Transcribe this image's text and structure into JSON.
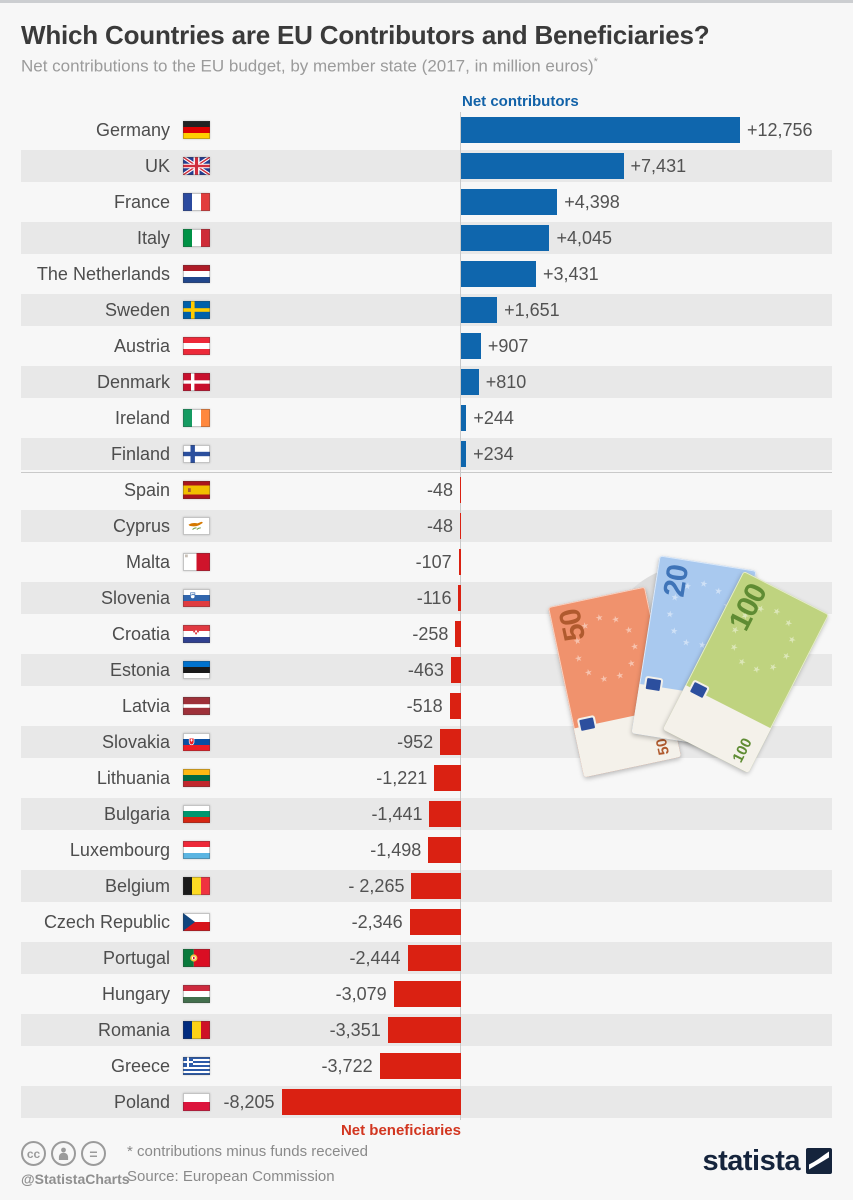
{
  "header": {
    "title": "Which Countries are EU Contributors and Beneficiaries?",
    "subtitle": "Net contributions to the EU budget, by member state (2017, in million euros)",
    "subtitle_superscript": "*"
  },
  "chart_data": {
    "type": "bar",
    "orientation": "horizontal",
    "unit": "million euros",
    "year": "2017",
    "positive_label": "Net contributors",
    "negative_label": "Net beneficiaries",
    "xlim": [
      -8205,
      12756
    ],
    "grid": false,
    "categories": [
      "Germany",
      "UK",
      "France",
      "Italy",
      "The Netherlands",
      "Sweden",
      "Austria",
      "Denmark",
      "Ireland",
      "Finland",
      "Spain",
      "Cyprus",
      "Malta",
      "Slovenia",
      "Croatia",
      "Estonia",
      "Latvia",
      "Slovakia",
      "Lithuania",
      "Bulgaria",
      "Luxembourg",
      "Belgium",
      "Czech Republic",
      "Portugal",
      "Hungary",
      "Romania",
      "Greece",
      "Poland"
    ],
    "values": [
      12756,
      7431,
      4398,
      4045,
      3431,
      1651,
      907,
      810,
      244,
      234,
      -48,
      -48,
      -107,
      -116,
      -258,
      -463,
      -518,
      -952,
      -1221,
      -1441,
      -1498,
      -2265,
      -2346,
      -2444,
      -3079,
      -3351,
      -3722,
      -8205
    ],
    "display_labels": [
      "+12,756",
      "+7,431",
      "+4,398",
      "+4,045",
      "+3,431",
      "+1,651",
      "+907",
      "+810",
      "+244",
      "+234",
      "-48",
      "-48",
      "-107",
      "-116",
      "-258",
      "-463",
      "-518",
      "-952",
      "-1,221",
      "-1,441",
      "-1,498",
      "- 2,265",
      "-2,346",
      "-2,444",
      "-3,079",
      "-3,351",
      "-3,722",
      "-8,205"
    ],
    "flags": [
      "germany",
      "uk",
      "france",
      "italy",
      "netherlands",
      "sweden",
      "austria",
      "denmark",
      "ireland",
      "finland",
      "spain",
      "cyprus",
      "malta",
      "slovenia",
      "croatia",
      "estonia",
      "latvia",
      "slovakia",
      "lithuania",
      "bulgaria",
      "luxembourg",
      "belgium",
      "czech",
      "portugal",
      "hungary",
      "romania",
      "greece",
      "poland"
    ],
    "colors": {
      "positive": "#0f66ad",
      "negative": "#da2112",
      "positive_label_color": "#1262a8",
      "negative_label_color": "#d23620",
      "stripe": "#e8e8e8",
      "axis_line": "#c9c9c9",
      "background": "#f7f7f7"
    }
  },
  "illustration": {
    "description": "fanned euro banknotes on gray circle",
    "notes": [
      {
        "denomination": "50",
        "color": "#f0926d",
        "text_color": "#b05a2e"
      },
      {
        "denomination": "20",
        "color": "#a9c9ef",
        "text_color": "#3f74b8"
      },
      {
        "denomination": "100",
        "color": "#bfd37f",
        "text_color": "#5f8c33"
      }
    ]
  },
  "footer": {
    "handle": "@StatistaCharts",
    "footnote": "* contributions minus funds received",
    "source": "Source: European Commission",
    "brand": "statista",
    "license_badges": [
      "cc",
      "attribution",
      "equal"
    ]
  }
}
